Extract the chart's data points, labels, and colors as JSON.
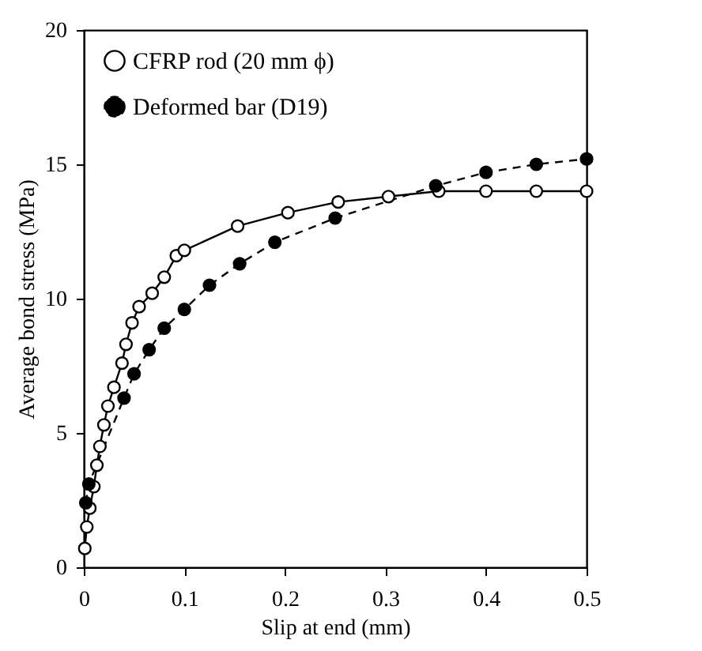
{
  "chart_data": {
    "type": "line",
    "xlabel": "Slip at end (mm)",
    "ylabel": "Average bond stress (MPa)",
    "xlim": [
      0,
      0.5
    ],
    "ylim": [
      0,
      20
    ],
    "xticks": [
      0,
      0.1,
      0.2,
      0.3,
      0.4,
      0.5
    ],
    "yticks": [
      0,
      5,
      10,
      15,
      20
    ],
    "grid": false,
    "legend": "top left",
    "marker": "circle",
    "series": [
      {
        "name": "CFRP rod (20 mm ϕ)",
        "color": "#000000",
        "line_style": "solid",
        "x": [
          0.001,
          0.003,
          0.006,
          0.01,
          0.013,
          0.016,
          0.02,
          0.024,
          0.03,
          0.038,
          0.042,
          0.048,
          0.055,
          0.068,
          0.08,
          0.092,
          0.1,
          0.153,
          0.203,
          0.253,
          0.303,
          0.353,
          0.4,
          0.45,
          0.5
        ],
        "values": [
          0.7,
          1.5,
          2.2,
          3.0,
          3.8,
          4.5,
          5.3,
          6.0,
          6.7,
          7.6,
          8.3,
          9.1,
          9.7,
          10.2,
          10.8,
          11.6,
          11.8,
          12.7,
          13.2,
          13.6,
          13.8,
          14.0,
          14.0,
          14.0,
          14.0
        ]
      },
      {
        "name": "Deformed bar (D19)",
        "color": "#000000",
        "line_style": "dashed",
        "x": [
          0.002,
          0.005,
          0.04,
          0.05,
          0.065,
          0.08,
          0.1,
          0.125,
          0.155,
          0.19,
          0.25,
          0.35,
          0.4,
          0.45,
          0.5
        ],
        "values": [
          2.4,
          3.1,
          6.3,
          7.2,
          8.1,
          8.9,
          9.6,
          10.5,
          11.3,
          12.1,
          13.0,
          14.2,
          14.7,
          15.0,
          15.2
        ]
      }
    ]
  }
}
